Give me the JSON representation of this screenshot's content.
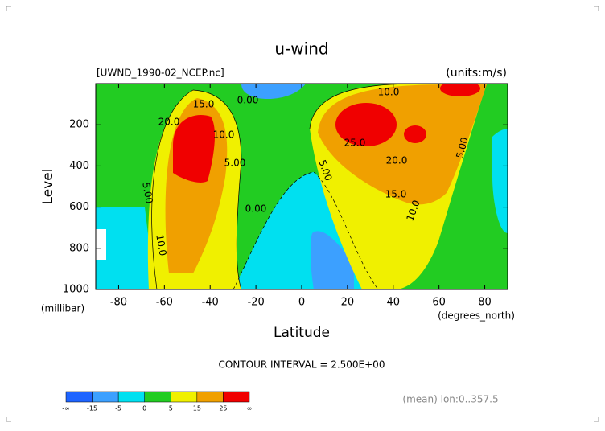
{
  "chart_data": {
    "type": "contour",
    "title": "u-wind",
    "file_label": "[UWND_1990-02_NCEP.nc]",
    "units_label": "(units:m/s)",
    "xlabel": "Latitude",
    "xunit_label": "(degrees_north)",
    "ylabel": "Level",
    "yunit_label": "(millibar)",
    "xlim": [
      -90,
      90
    ],
    "xticks": [
      -80,
      -60,
      -40,
      -20,
      0,
      20,
      40,
      60,
      80
    ],
    "ylim": [
      1000,
      0
    ],
    "yticks": [
      200,
      400,
      600,
      800,
      1000
    ],
    "contour_interval_label": "CONTOUR INTERVAL = 2.500E+00",
    "averaging_label": "(mean) lon:0..357.5",
    "contour_labels": [
      "0.00",
      "15.0",
      "20.0",
      "10.0",
      "5.00",
      "0.00",
      "5.00",
      "10.0",
      "5.00",
      "10.0",
      "25.0",
      "20.0",
      "15.0",
      "10.0",
      "5.00"
    ],
    "colorbar": {
      "labels": [
        "-∞",
        "-15",
        "-5",
        "0",
        "5",
        "15",
        "25",
        "∞"
      ],
      "colors": [
        "#1e64ff",
        "#3ca0ff",
        "#00e0f0",
        "#22cc22",
        "#f0f000",
        "#f0a000",
        "#f00000"
      ]
    }
  }
}
